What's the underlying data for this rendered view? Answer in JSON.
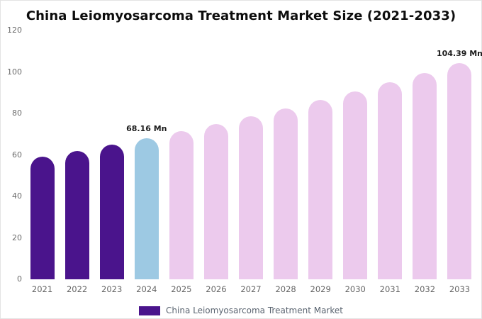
{
  "chart_data": {
    "type": "bar",
    "title": "China Leiomyosarcoma Treatment Market Size (2021-2033)",
    "unit": "Mn",
    "categories": [
      "2021",
      "2022",
      "2023",
      "2024",
      "2025",
      "2026",
      "2027",
      "2028",
      "2029",
      "2030",
      "2031",
      "2032",
      "2033"
    ],
    "values": [
      59.1,
      62.0,
      65.0,
      68.16,
      71.5,
      74.9,
      78.6,
      82.4,
      86.4,
      90.6,
      94.9,
      99.6,
      104.39
    ],
    "bar_colors": [
      "#4a148c",
      "#4a148c",
      "#4a148c",
      "#9dc9e3",
      "#eccaed",
      "#eccaed",
      "#eccaed",
      "#eccaed",
      "#eccaed",
      "#eccaed",
      "#eccaed",
      "#eccaed",
      "#eccaed"
    ],
    "ylim": [
      0,
      120
    ],
    "yticks": [
      0,
      20,
      40,
      60,
      80,
      100,
      120
    ],
    "grid": false,
    "annotations": [
      {
        "category": "2024",
        "text": "68.16 Mn"
      },
      {
        "category": "2033",
        "text": "104.39 Mn"
      }
    ],
    "legend": {
      "position": "bottom",
      "label": "China Leiomyosarcoma Treatment Market",
      "swatch_color": "#4a148c"
    }
  }
}
